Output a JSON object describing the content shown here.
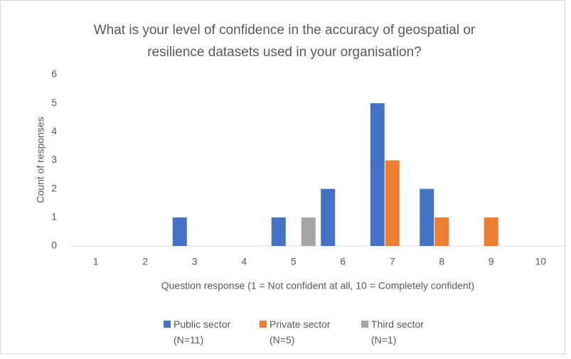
{
  "chart_data": {
    "type": "bar",
    "title": "What is your level of confidence in the accuracy of geospatial or resilience datasets used in your organisation?",
    "x_label": "Question response (1 = Not confident at all, 10 = Completely confident)",
    "y_label": "Count of responses",
    "categories": [
      "1",
      "2",
      "3",
      "4",
      "5",
      "6",
      "7",
      "8",
      "9",
      "10"
    ],
    "series": [
      {
        "name": "Public sector (N=11)",
        "color": "#4472c4",
        "values": [
          0,
          0,
          1,
          0,
          1,
          2,
          5,
          2,
          0,
          0
        ]
      },
      {
        "name": "Private sector (N=5)",
        "color": "#ed7d31",
        "values": [
          0,
          0,
          0,
          0,
          0,
          0,
          3,
          1,
          1,
          0
        ]
      },
      {
        "name": "Third sector (N=1)",
        "color": "#a5a5a5",
        "values": [
          0,
          0,
          0,
          0,
          1,
          0,
          0,
          0,
          0,
          0
        ]
      }
    ],
    "ylim": [
      0,
      6
    ],
    "yticks": [
      0,
      1,
      2,
      3,
      4,
      5,
      6
    ],
    "grid": false,
    "legend": "bottom"
  }
}
